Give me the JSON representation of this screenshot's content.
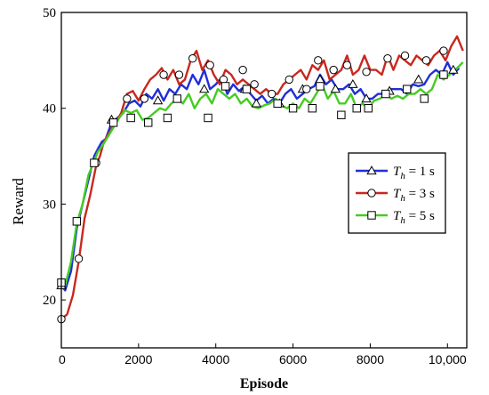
{
  "chart_data": {
    "type": "line",
    "title": "",
    "xlabel": "Episode",
    "ylabel": "Reward",
    "xlim": [
      0,
      10500
    ],
    "ylim": [
      15,
      50
    ],
    "xticks": [
      0,
      2000,
      4000,
      6000,
      8000,
      10000
    ],
    "xtick_labels": [
      "0",
      "2000",
      "4000",
      "6000",
      "8000",
      "10,000"
    ],
    "yticks": [
      20,
      30,
      40,
      50
    ],
    "ytick_labels": [
      "20",
      "30",
      "40",
      "50"
    ],
    "grid": false,
    "legend_position": "middle-right",
    "series": [
      {
        "name": "T_h = 1 s",
        "legend": {
          "symbol": "T",
          "subscript": "h",
          "rest": " = 1 s"
        },
        "color": "#1f2fd6",
        "marker": "triangle",
        "x": [
          0,
          100,
          250,
          400,
          550,
          700,
          850,
          950,
          1050,
          1150,
          1300,
          1450,
          1600,
          1750,
          1900,
          2050,
          2200,
          2350,
          2500,
          2650,
          2800,
          2950,
          3100,
          3250,
          3400,
          3550,
          3700,
          3850,
          4000,
          4150,
          4300,
          4450,
          4600,
          4750,
          4900,
          5050,
          5200,
          5350,
          5500,
          5650,
          5800,
          5950,
          6100,
          6250,
          6400,
          6550,
          6700,
          6850,
          7000,
          7150,
          7300,
          7450,
          7600,
          7750,
          7900,
          8050,
          8200,
          8350,
          8500,
          8650,
          8800,
          8950,
          9100,
          9250,
          9400,
          9550,
          9700,
          9850,
          10000,
          10150,
          10300
        ],
        "values": [
          21.5,
          21.0,
          23.0,
          27.5,
          30.0,
          32.5,
          35.0,
          35.8,
          36.5,
          36.8,
          38.5,
          39.0,
          39.5,
          40.5,
          40.8,
          40.2,
          41.5,
          41.0,
          42.0,
          40.8,
          42.0,
          41.5,
          42.5,
          42.0,
          43.5,
          42.5,
          44.0,
          42.0,
          42.5,
          43.2,
          41.5,
          42.5,
          41.8,
          42.3,
          41.5,
          40.8,
          41.3,
          40.5,
          41.0,
          40.5,
          41.5,
          42.0,
          41.0,
          41.5,
          42.0,
          42.3,
          43.5,
          42.5,
          43.0,
          42.0,
          42.0,
          42.5,
          41.5,
          42.0,
          41.0,
          41.0,
          41.5,
          41.5,
          42.0,
          42.0,
          42.0,
          41.5,
          42.5,
          42.3,
          42.5,
          43.5,
          44.0,
          43.5,
          44.8,
          43.5,
          44.2
        ],
        "marker_x": [
          0,
          1300,
          2500,
          3700,
          4750,
          5050,
          5650,
          6250,
          6700,
          7100,
          7550,
          7900,
          8500,
          9250,
          10150
        ],
        "marker_values": [
          21.5,
          38.8,
          40.8,
          42.0,
          42.0,
          40.5,
          40.5,
          42.0,
          43.0,
          42.0,
          42.5,
          41.0,
          41.8,
          43.0,
          44.0
        ]
      },
      {
        "name": "T_h = 3 s",
        "legend": {
          "symbol": "T",
          "subscript": "h",
          "rest": " = 3 s"
        },
        "color": "#c8281e",
        "marker": "circle",
        "x": [
          0,
          150,
          300,
          450,
          600,
          750,
          900,
          1000,
          1100,
          1250,
          1400,
          1550,
          1700,
          1850,
          2000,
          2150,
          2300,
          2450,
          2600,
          2750,
          2900,
          3050,
          3200,
          3350,
          3500,
          3650,
          3800,
          3950,
          4100,
          4250,
          4400,
          4550,
          4700,
          4850,
          5000,
          5150,
          5300,
          5450,
          5600,
          5750,
          5900,
          6050,
          6200,
          6350,
          6500,
          6650,
          6800,
          6950,
          7100,
          7250,
          7400,
          7550,
          7700,
          7850,
          8000,
          8150,
          8300,
          8450,
          8600,
          8750,
          8900,
          9050,
          9200,
          9350,
          9500,
          9650,
          9800,
          9950,
          10100,
          10250,
          10400
        ],
        "values": [
          18.0,
          18.5,
          20.5,
          24.0,
          28.5,
          31.0,
          34.0,
          35.0,
          36.5,
          37.5,
          38.5,
          39.5,
          41.5,
          41.8,
          40.8,
          42.0,
          43.0,
          43.5,
          44.2,
          43.0,
          44.0,
          42.5,
          43.0,
          45.0,
          46.0,
          44.0,
          45.0,
          43.5,
          42.5,
          44.0,
          43.5,
          42.5,
          43.0,
          42.5,
          42.0,
          41.5,
          42.0,
          41.5,
          41.5,
          42.5,
          43.0,
          43.5,
          44.0,
          43.0,
          44.5,
          44.0,
          45.0,
          43.0,
          43.5,
          44.0,
          45.5,
          43.5,
          44.0,
          45.5,
          44.0,
          44.0,
          43.5,
          45.5,
          44.0,
          45.5,
          45.0,
          44.5,
          45.5,
          45.0,
          44.5,
          45.5,
          46.0,
          45.0,
          46.5,
          47.5,
          46.0
        ],
        "marker_x": [
          0,
          450,
          900,
          1700,
          2150,
          2650,
          3050,
          3400,
          3850,
          4200,
          4700,
          5000,
          5450,
          5900,
          6350,
          6650,
          7050,
          7400,
          7900,
          8450,
          8900,
          9450,
          9900
        ],
        "marker_values": [
          18.0,
          24.3,
          34.3,
          41.0,
          41.0,
          43.5,
          43.5,
          45.2,
          44.5,
          43.0,
          44.0,
          42.5,
          41.5,
          43.0,
          42.0,
          45.0,
          44.0,
          44.5,
          43.8,
          45.2,
          45.5,
          45.0,
          46.0
        ]
      },
      {
        "name": "T_h = 5 s",
        "legend": {
          "symbol": "T",
          "subscript": "h",
          "rest": " = 5 s"
        },
        "color": "#44cc22",
        "marker": "square",
        "x": [
          0,
          100,
          250,
          400,
          550,
          700,
          850,
          950,
          1050,
          1200,
          1350,
          1500,
          1650,
          1800,
          1950,
          2100,
          2250,
          2400,
          2550,
          2700,
          2850,
          3000,
          3150,
          3300,
          3450,
          3600,
          3750,
          3900,
          4050,
          4200,
          4350,
          4500,
          4650,
          4800,
          4950,
          5100,
          5250,
          5400,
          5550,
          5700,
          5850,
          6000,
          6150,
          6300,
          6450,
          6600,
          6750,
          6900,
          7050,
          7200,
          7350,
          7500,
          7650,
          7800,
          7950,
          8100,
          8250,
          8400,
          8550,
          8700,
          8850,
          9000,
          9150,
          9300,
          9450,
          9600,
          9750,
          9900,
          10050,
          10200,
          10400
        ],
        "values": [
          21.5,
          21.5,
          24.0,
          28.0,
          30.0,
          33.0,
          34.5,
          35.5,
          36.0,
          37.0,
          38.0,
          39.0,
          39.8,
          39.5,
          39.8,
          38.8,
          39.0,
          39.5,
          40.0,
          39.8,
          40.5,
          41.0,
          40.5,
          41.5,
          40.0,
          41.0,
          41.5,
          40.5,
          42.0,
          41.5,
          41.0,
          41.5,
          40.5,
          41.0,
          40.2,
          40.0,
          40.3,
          40.5,
          41.0,
          40.3,
          40.0,
          40.5,
          40.0,
          41.0,
          40.5,
          41.5,
          42.5,
          41.0,
          41.8,
          40.5,
          40.5,
          41.5,
          40.0,
          40.5,
          40.0,
          40.8,
          41.0,
          41.5,
          41.0,
          41.3,
          41.0,
          41.5,
          41.5,
          42.0,
          41.5,
          42.0,
          43.5,
          43.0,
          43.5,
          44.0,
          44.8
        ],
        "marker_x": [
          0,
          400,
          850,
          1350,
          1800,
          2250,
          2750,
          3000,
          3800,
          4250,
          4800,
          5600,
          6000,
          6500,
          6700,
          7250,
          7650,
          7950,
          8400,
          8950,
          9400,
          9900
        ],
        "marker_values": [
          21.8,
          28.2,
          34.3,
          38.5,
          39.0,
          38.5,
          39.0,
          41.0,
          39.0,
          42.3,
          42.0,
          40.5,
          40.0,
          40.0,
          42.3,
          39.3,
          40.0,
          40.0,
          41.5,
          42.0,
          41.0,
          43.5
        ]
      }
    ]
  }
}
